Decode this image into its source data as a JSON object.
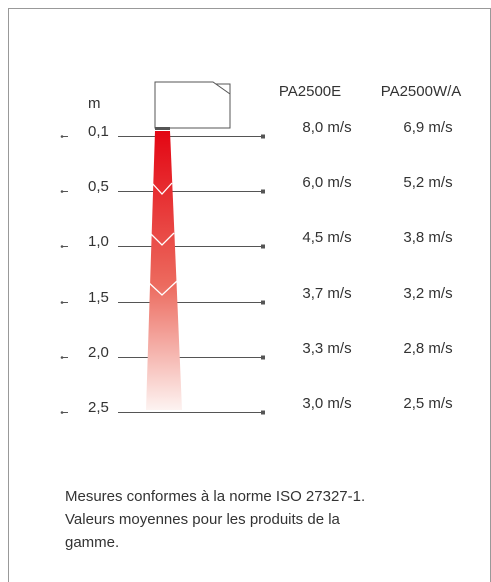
{
  "header": {
    "unit": "m",
    "columns": [
      "PA2500E",
      "PA2500W/A"
    ]
  },
  "rows": [
    {
      "distance": "0,1",
      "values": [
        "8,0 m/s",
        "6,9 m/s"
      ]
    },
    {
      "distance": "0,5",
      "values": [
        "6,0 m/s",
        "5,2 m/s"
      ]
    },
    {
      "distance": "1,0",
      "values": [
        "4,5 m/s",
        "3,8 m/s"
      ]
    },
    {
      "distance": "1,5",
      "values": [
        "3,7 m/s",
        "3,2 m/s"
      ]
    },
    {
      "distance": "2,0",
      "values": [
        "3,3 m/s",
        "2,8 m/s"
      ]
    },
    {
      "distance": "2,5",
      "values": [
        "3,0 m/s",
        "2,5 m/s"
      ]
    }
  ],
  "note": [
    "Mesures conformes à la norme ISO 27327-1.",
    "Valeurs moyennes pour les produits de la",
    "gamme."
  ]
}
